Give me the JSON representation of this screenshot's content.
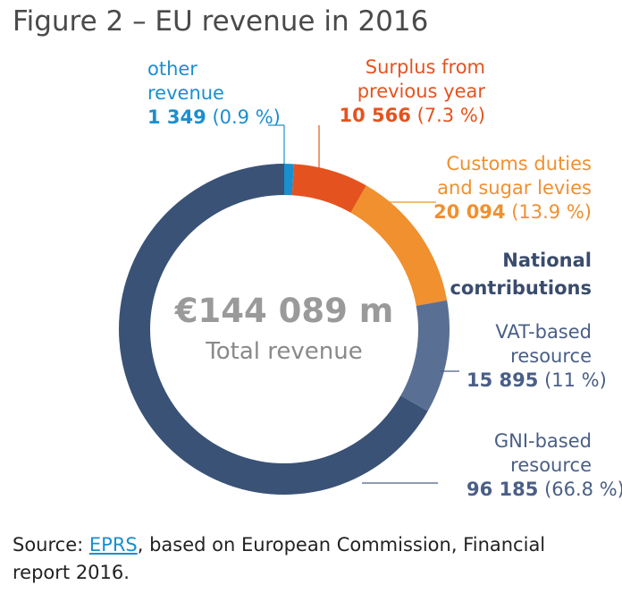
{
  "chart_data": {
    "type": "pie",
    "title": "Figure 2 – EU revenue in 2016",
    "categories": [
      "other revenue",
      "Surplus from previous year",
      "Customs duties and sugar levies",
      "VAT-based resource",
      "GNI-based resource"
    ],
    "values": [
      1349,
      10566,
      20094,
      15895,
      96185
    ],
    "value_labels": [
      "1 349",
      "10 566",
      "20 094",
      "15 895",
      "96 185"
    ],
    "percent_labels": [
      "(0.9 %)",
      "(7.3 %)",
      "(13.9 %)",
      "(11 %)",
      "(66.8 %)"
    ],
    "colors": [
      "#1a8fd0",
      "#e4531f",
      "#f0902f",
      "#5a6f94",
      "#3a5276"
    ],
    "group_label": "National contributions",
    "total": 144089,
    "total_label": "€144 089 m",
    "center_label": "Total revenue",
    "source_prefix": "Source:",
    "source_link": "EPRS",
    "source_rest": ", based on European Commission, Financial report 2016."
  }
}
